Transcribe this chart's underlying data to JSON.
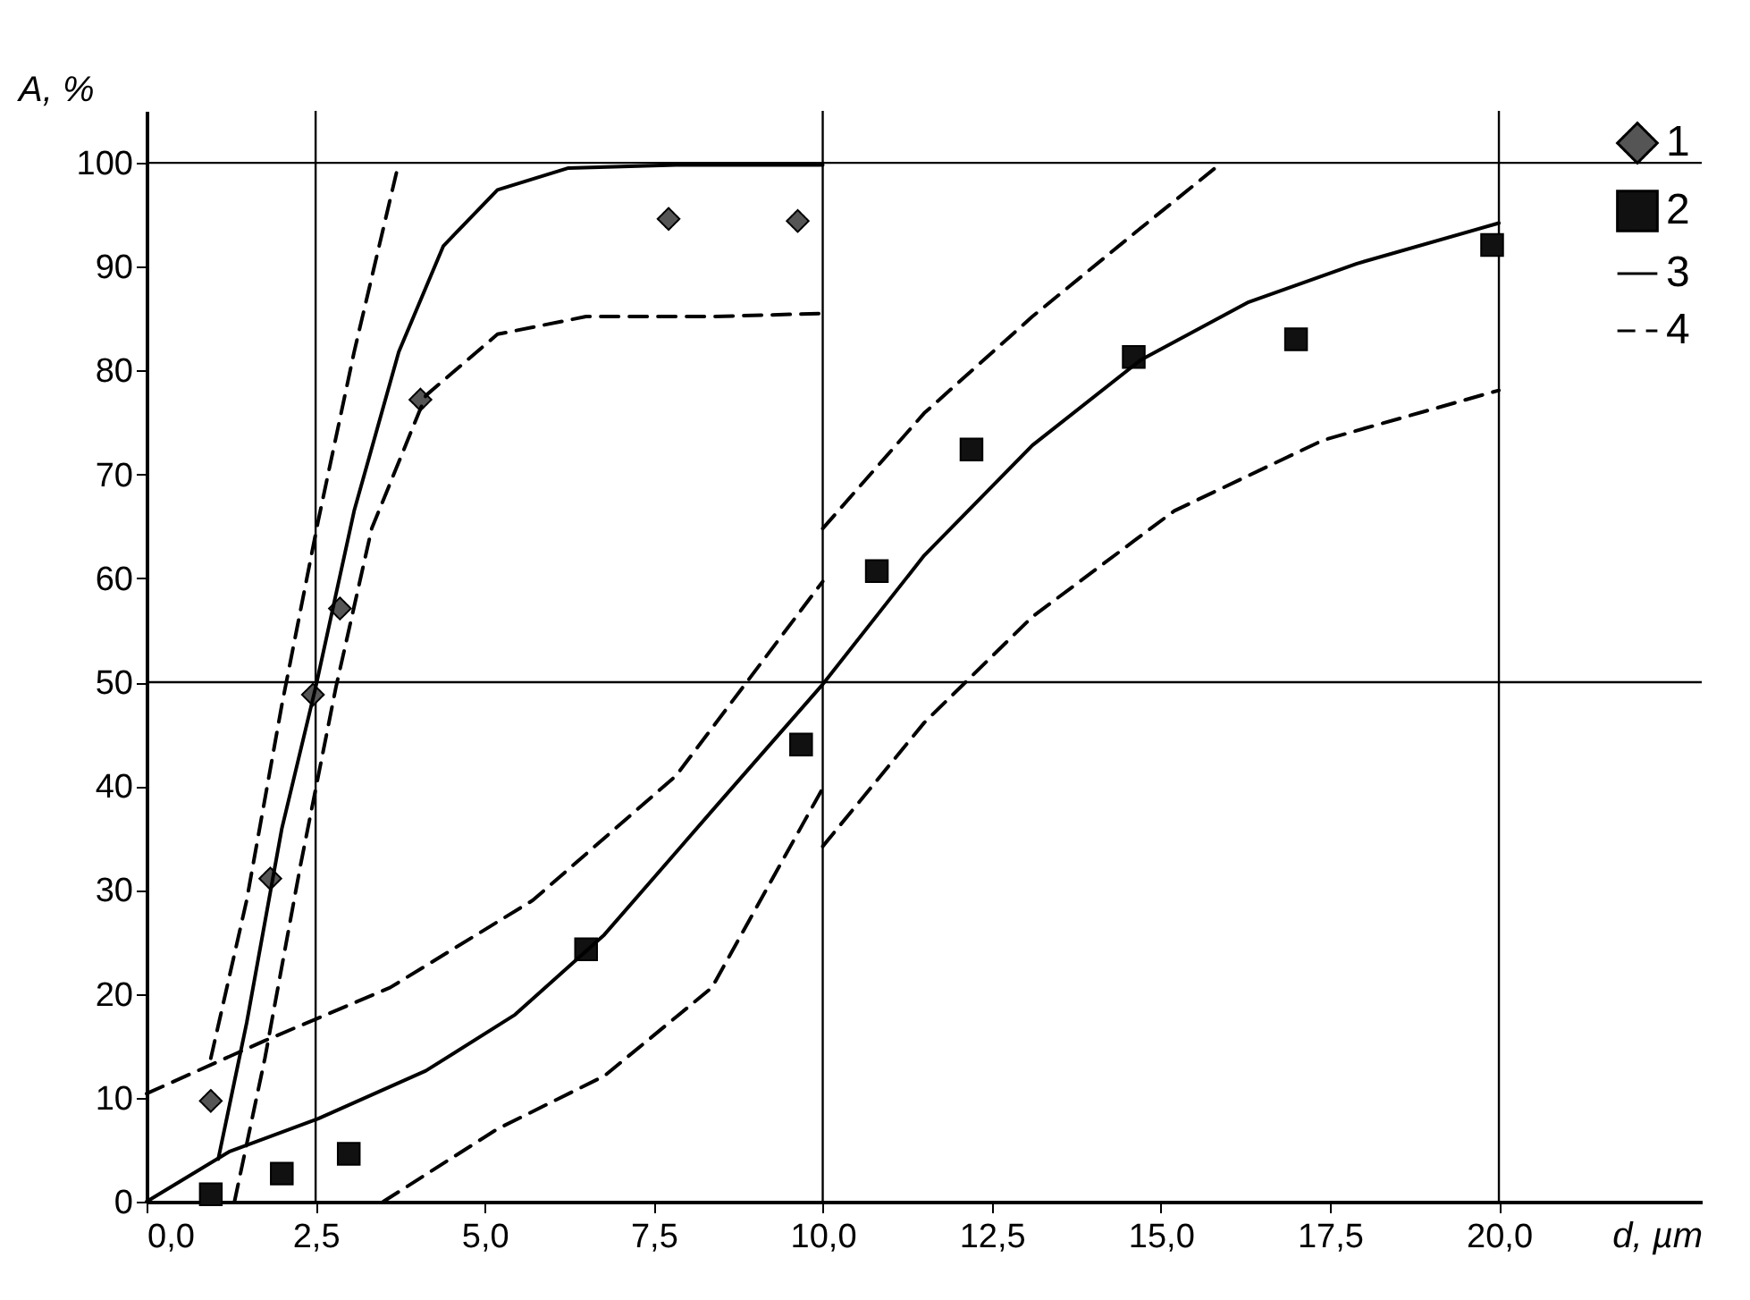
{
  "chart_data": {
    "type": "scatter",
    "xlabel": "d, µm",
    "ylabel": "A, %",
    "xlim": [
      0,
      23
    ],
    "ylim": [
      0,
      105
    ],
    "xticks": [
      {
        "value": 0,
        "label": "0,0"
      },
      {
        "value": 2.5,
        "label": "2,5"
      },
      {
        "value": 5,
        "label": "5,0"
      },
      {
        "value": 7.5,
        "label": "7,5"
      },
      {
        "value": 10,
        "label": "10,0"
      },
      {
        "value": 12.5,
        "label": "12,5"
      },
      {
        "value": 15,
        "label": "15,0"
      },
      {
        "value": 17.5,
        "label": "17,5"
      },
      {
        "value": 20,
        "label": "20,0"
      }
    ],
    "yticks": [
      0,
      10,
      20,
      30,
      40,
      50,
      60,
      70,
      80,
      90,
      100
    ],
    "legend": "top right",
    "grid": false,
    "ref_lines": [
      {
        "axis": "x",
        "value": 2.5
      },
      {
        "axis": "x",
        "value": 10
      },
      {
        "axis": "x",
        "value": 20
      },
      {
        "axis": "y",
        "value": 50
      },
      {
        "axis": "y",
        "value": 100
      }
    ],
    "series": [
      {
        "name": "1",
        "marker": "diamond",
        "color": "#555555",
        "x": [
          0.95,
          1.83,
          2.46,
          2.86,
          4.05,
          7.72,
          9.63
        ],
        "values": [
          9.7,
          31.1,
          48.8,
          57.1,
          77.2,
          94.6,
          94.4
        ]
      },
      {
        "name": "2",
        "marker": "square",
        "color": "#111111",
        "x": [
          0.95,
          2.0,
          2.99,
          6.5,
          9.68,
          10.8,
          12.2,
          14.6,
          17.0,
          19.9
        ],
        "values": [
          0.7,
          2.7,
          4.6,
          24.3,
          44,
          60.7,
          72.4,
          81.3,
          83,
          92.1
        ]
      },
      {
        "name": "3",
        "type": "line",
        "line_style": "solid",
        "color": "#000000",
        "x": [
          1.06,
          1.48,
          2.0,
          2.5,
          3.07,
          3.73,
          4.39,
          5.19,
          6.24,
          7.83,
          10.0
        ],
        "values": [
          4.1,
          17.2,
          35.9,
          49.5,
          66.5,
          81.8,
          92,
          97.4,
          99.5,
          99.8,
          99.8
        ]
      },
      {
        "type": "line",
        "line_style": "solid",
        "color": "#000000",
        "x": [
          0,
          1.22,
          2.54,
          4.13,
          5.45,
          6.77,
          8.36,
          10,
          11.5,
          13.1,
          14.7,
          16.3,
          17.9,
          20
        ],
        "values": [
          0,
          4.8,
          8,
          12.6,
          18,
          25.7,
          37.6,
          49.8,
          62.2,
          72.8,
          81,
          86.6,
          90.3,
          94.2
        ]
      },
      {
        "name": "4",
        "type": "line",
        "line_style": "dashed",
        "color": "#000000",
        "x": [
          0.95,
          1.48,
          2.0,
          2.54,
          3.07,
          3.73
        ],
        "values": [
          13.8,
          29,
          47.8,
          65.6,
          81.8,
          100
        ]
      },
      {
        "type": "line",
        "line_style": "dashed",
        "color": "#000000",
        "x": [
          1.3,
          1.75,
          2.28,
          2.8,
          3.33,
          4.13,
          5.19,
          6.5,
          8.36,
          10
        ],
        "values": [
          0,
          13.8,
          32.5,
          49.5,
          64.8,
          77.6,
          83.5,
          85.2,
          85.2,
          85.5
        ]
      },
      {
        "type": "line",
        "line_style": "dashed",
        "color": "#000000",
        "x": [
          0,
          1.75,
          3.6,
          5.71,
          7.83,
          10
        ],
        "values": [
          10.4,
          15.5,
          20.6,
          29,
          41,
          59.7
        ]
      },
      {
        "type": "line",
        "line_style": "dashed",
        "color": "#000000",
        "x": [
          10,
          11.5,
          13.1,
          14.7,
          15.9
        ],
        "values": [
          64.8,
          75.9,
          85.2,
          93.7,
          100
        ]
      },
      {
        "type": "line",
        "line_style": "dashed",
        "color": "#000000",
        "x": [
          3.5,
          5.19,
          6.77,
          8.36,
          10
        ],
        "values": [
          0,
          7,
          12.1,
          20.6,
          39.8
        ]
      },
      {
        "type": "line",
        "line_style": "dashed",
        "color": "#000000",
        "x": [
          10,
          11.5,
          13.1,
          15.2,
          17.4,
          20
        ],
        "values": [
          34.2,
          46.1,
          56.3,
          66.5,
          73.3,
          78.1
        ]
      }
    ]
  }
}
